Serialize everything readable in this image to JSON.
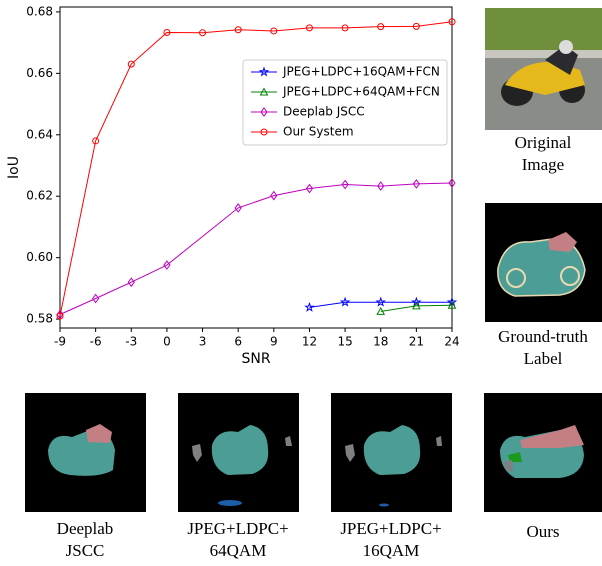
{
  "chart_data": {
    "type": "line",
    "x_label": "SNR",
    "y_label": "IoU",
    "xlim": [
      -9,
      24
    ],
    "ylim": [
      0.5771,
      0.6816
    ],
    "xticks": [
      -9,
      -6,
      -3,
      0,
      3,
      6,
      9,
      12,
      15,
      18,
      21,
      24
    ],
    "yticks": [
      0.58,
      {
        "value": 0.6,
        "label": "0.60"
      },
      0.62,
      0.64,
      0.66,
      0.68
    ],
    "legend": "upper right",
    "series": [
      {
        "name": "JPEG+LDPC+16QAM+FCN",
        "color": "#0000ff",
        "marker": "star",
        "x": [
          12,
          15,
          18,
          21,
          24
        ],
        "values": [
          0.5838,
          0.5855,
          0.5855,
          0.5855,
          0.5855
        ]
      },
      {
        "name": "JPEG+LDPC+64QAM+FCN",
        "color": "#008000",
        "marker": "triangle",
        "x": [
          18,
          21,
          24
        ],
        "values": [
          0.5825,
          0.5843,
          0.5845
        ]
      },
      {
        "name": "Deeplab JSCC",
        "color": "#bf00bf",
        "marker": "diamond",
        "x": [
          -9,
          -6,
          -3,
          0,
          6,
          9,
          12,
          15,
          18,
          21,
          24
        ],
        "values": [
          0.5815,
          0.5867,
          0.592,
          0.5976,
          0.6162,
          0.6202,
          0.6225,
          0.6238,
          0.6233,
          0.624,
          0.6243
        ]
      },
      {
        "name": "Our System",
        "color": "#ff0000",
        "marker": "circle",
        "x": [
          -9,
          -6,
          -3,
          0,
          3,
          6,
          9,
          12,
          15,
          18,
          21,
          24
        ],
        "values": [
          0.581,
          0.638,
          0.663,
          0.6733,
          0.6732,
          0.6742,
          0.6738,
          0.6748,
          0.6748,
          0.6752,
          0.6753,
          0.6768
        ]
      }
    ]
  },
  "panels": [
    {
      "caption": [
        "Original",
        "Image"
      ]
    },
    {
      "caption": [
        "Ground-truth",
        "Label"
      ]
    },
    {
      "caption": [
        "Deeplab",
        "JSCC"
      ]
    },
    {
      "caption": [
        "JPEG+LDPC+",
        "64QAM"
      ]
    },
    {
      "caption": [
        "JPEG+LDPC+",
        "16QAM"
      ]
    },
    {
      "caption": [
        "Ours"
      ]
    }
  ]
}
